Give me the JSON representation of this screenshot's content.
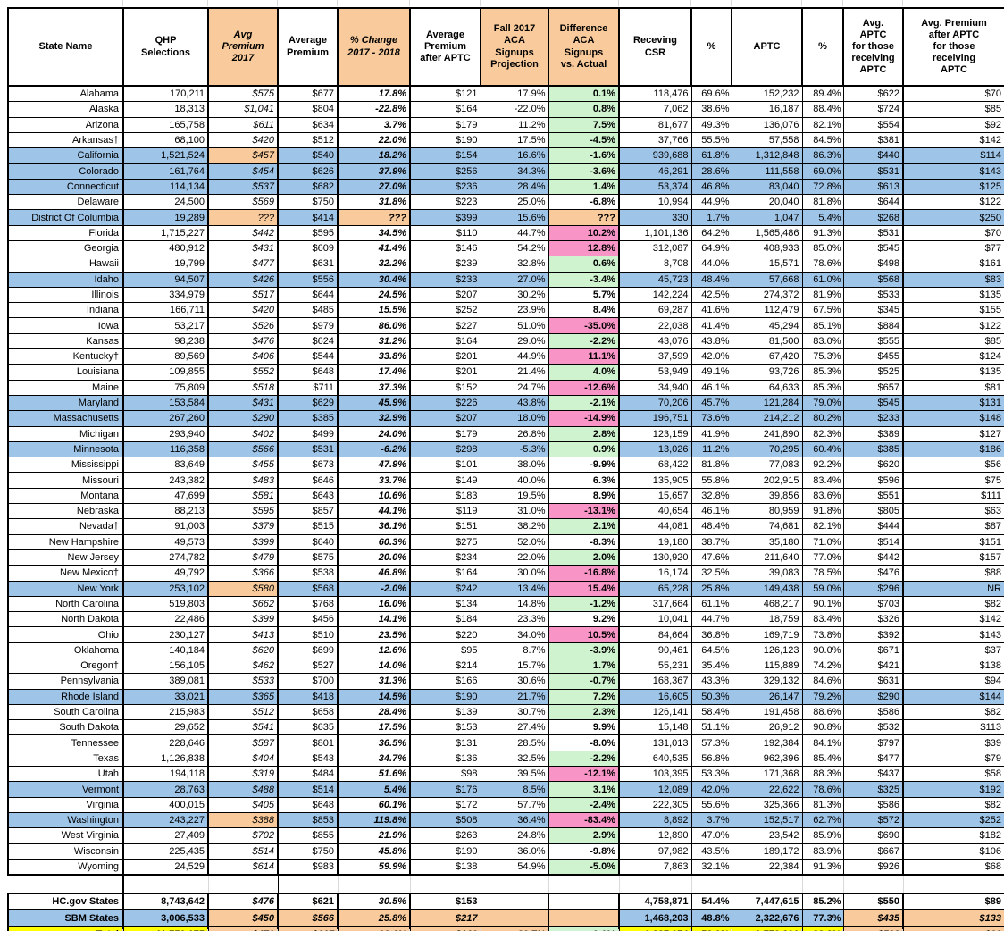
{
  "colors": {
    "blue": "#9EC4E8",
    "orange": "#F9CB9C",
    "green": "#CFF3CF",
    "pink": "#F895C6",
    "yellow": "#FFFF00"
  },
  "header": {
    "labels": [
      "State Name",
      "QHP\nSelections",
      "Avg\nPremium\n2017",
      "Average\nPremium",
      "% Change\n2017 - 2018",
      "Average\nPremium\nafter APTC",
      "Fall 2017\nACA\nSignups\nProjection",
      "Difference\nACA\nSignups\nvs. Actual",
      "Receving\nCSR",
      "%",
      "APTC",
      "%",
      "Avg.\nAPTC\nfor those\nreceiving\nAPTC",
      "Avg. Premium\nafter APTC\nfor those\nreceiving\nAPTC"
    ]
  },
  "rows": [
    {
      "name": "Alabama",
      "blue": false,
      "o17": false,
      "diffc": "g",
      "v": [
        "170,211",
        "$575",
        "$677",
        "17.8%",
        "$121",
        "17.9%",
        "0.1%",
        "118,476",
        "69.6%",
        "152,232",
        "89.4%",
        "$622",
        "$70"
      ]
    },
    {
      "name": "Alaska",
      "blue": false,
      "o17": false,
      "diffc": "g",
      "v": [
        "18,313",
        "$1,041",
        "$804",
        "-22.8%",
        "$164",
        "-22.0%",
        "0.8%",
        "7,062",
        "38.6%",
        "16,187",
        "88.4%",
        "$724",
        "$85"
      ]
    },
    {
      "name": "Arizona",
      "blue": false,
      "o17": false,
      "diffc": "g",
      "v": [
        "165,758",
        "$611",
        "$634",
        "3.7%",
        "$179",
        "11.2%",
        "7.5%",
        "81,677",
        "49.3%",
        "136,076",
        "82.1%",
        "$554",
        "$92"
      ]
    },
    {
      "name": "Arkansas†",
      "blue": false,
      "o17": false,
      "diffc": "g",
      "v": [
        "68,100",
        "$420",
        "$512",
        "22.0%",
        "$190",
        "17.5%",
        "-4.5%",
        "37,766",
        "55.5%",
        "57,558",
        "84.5%",
        "$381",
        "$142"
      ]
    },
    {
      "name": "California",
      "blue": true,
      "o17": true,
      "diffc": "g",
      "v": [
        "1,521,524",
        "$457",
        "$540",
        "18.2%",
        "$154",
        "16.6%",
        "-1.6%",
        "939,688",
        "61.8%",
        "1,312,848",
        "86.3%",
        "$440",
        "$114"
      ]
    },
    {
      "name": "Colorado",
      "blue": true,
      "o17": false,
      "diffc": "g",
      "v": [
        "161,764",
        "$454",
        "$626",
        "37.9%",
        "$256",
        "34.3%",
        "-3.6%",
        "46,291",
        "28.6%",
        "111,558",
        "69.0%",
        "$531",
        "$143"
      ]
    },
    {
      "name": "Connecticut",
      "blue": true,
      "o17": false,
      "diffc": "g",
      "v": [
        "114,134",
        "$537",
        "$682",
        "27.0%",
        "$236",
        "28.4%",
        "1.4%",
        "53,374",
        "46.8%",
        "83,040",
        "72.8%",
        "$613",
        "$125"
      ]
    },
    {
      "name": "Delaware",
      "blue": false,
      "o17": false,
      "diffc": "w",
      "v": [
        "24,500",
        "$569",
        "$750",
        "31.8%",
        "$223",
        "25.0%",
        "-6.8%",
        "10,994",
        "44.9%",
        "20,040",
        "81.8%",
        "$644",
        "$122"
      ]
    },
    {
      "name": "District Of Columbia",
      "blue": true,
      "o17": true,
      "oc": true,
      "diffc": "o",
      "v": [
        "19,289",
        "???",
        "$414",
        "???",
        "$399",
        "15.6%",
        "???",
        "330",
        "1.7%",
        "1,047",
        "5.4%",
        "$268",
        "$250"
      ]
    },
    {
      "name": "Florida",
      "blue": false,
      "o17": false,
      "diffc": "p",
      "v": [
        "1,715,227",
        "$442",
        "$595",
        "34.5%",
        "$110",
        "44.7%",
        "10.2%",
        "1,101,136",
        "64.2%",
        "1,565,486",
        "91.3%",
        "$531",
        "$70"
      ]
    },
    {
      "name": "Georgia",
      "blue": false,
      "o17": false,
      "diffc": "p",
      "v": [
        "480,912",
        "$431",
        "$609",
        "41.4%",
        "$146",
        "54.2%",
        "12.8%",
        "312,087",
        "64.9%",
        "408,933",
        "85.0%",
        "$545",
        "$77"
      ]
    },
    {
      "name": "Hawaii",
      "blue": false,
      "o17": false,
      "diffc": "g",
      "v": [
        "19,799",
        "$477",
        "$631",
        "32.2%",
        "$239",
        "32.8%",
        "0.6%",
        "8,708",
        "44.0%",
        "15,571",
        "78.6%",
        "$498",
        "$161"
      ]
    },
    {
      "name": "Idaho",
      "blue": true,
      "o17": false,
      "diffc": "g",
      "v": [
        "94,507",
        "$426",
        "$556",
        "30.4%",
        "$233",
        "27.0%",
        "-3.4%",
        "45,723",
        "48.4%",
        "57,668",
        "61.0%",
        "$568",
        "$83"
      ]
    },
    {
      "name": "Illinois",
      "blue": false,
      "o17": false,
      "diffc": "w",
      "v": [
        "334,979",
        "$517",
        "$644",
        "24.5%",
        "$207",
        "30.2%",
        "5.7%",
        "142,224",
        "42.5%",
        "274,372",
        "81.9%",
        "$533",
        "$135"
      ]
    },
    {
      "name": "Indiana",
      "blue": false,
      "o17": false,
      "diffc": "w",
      "v": [
        "166,711",
        "$420",
        "$485",
        "15.5%",
        "$252",
        "23.9%",
        "8.4%",
        "69,287",
        "41.6%",
        "112,479",
        "67.5%",
        "$345",
        "$155"
      ]
    },
    {
      "name": "Iowa",
      "blue": false,
      "o17": false,
      "diffc": "p",
      "v": [
        "53,217",
        "$526",
        "$979",
        "86.0%",
        "$227",
        "51.0%",
        "-35.0%",
        "22,038",
        "41.4%",
        "45,294",
        "85.1%",
        "$884",
        "$122"
      ]
    },
    {
      "name": "Kansas",
      "blue": false,
      "o17": false,
      "diffc": "g",
      "v": [
        "98,238",
        "$476",
        "$624",
        "31.2%",
        "$164",
        "29.0%",
        "-2.2%",
        "43,076",
        "43.8%",
        "81,500",
        "83.0%",
        "$555",
        "$85"
      ]
    },
    {
      "name": "Kentucky†",
      "blue": false,
      "o17": false,
      "diffc": "p",
      "v": [
        "89,569",
        "$406",
        "$544",
        "33.8%",
        "$201",
        "44.9%",
        "11.1%",
        "37,599",
        "42.0%",
        "67,420",
        "75.3%",
        "$455",
        "$124"
      ]
    },
    {
      "name": "Louisiana",
      "blue": false,
      "o17": false,
      "diffc": "g",
      "v": [
        "109,855",
        "$552",
        "$648",
        "17.4%",
        "$201",
        "21.4%",
        "4.0%",
        "53,949",
        "49.1%",
        "93,726",
        "85.3%",
        "$525",
        "$135"
      ]
    },
    {
      "name": "Maine",
      "blue": false,
      "o17": false,
      "diffc": "p",
      "v": [
        "75,809",
        "$518",
        "$711",
        "37.3%",
        "$152",
        "24.7%",
        "-12.6%",
        "34,940",
        "46.1%",
        "64,633",
        "85.3%",
        "$657",
        "$81"
      ]
    },
    {
      "name": "Maryland",
      "blue": true,
      "o17": false,
      "diffc": "g",
      "v": [
        "153,584",
        "$431",
        "$629",
        "45.9%",
        "$226",
        "43.8%",
        "-2.1%",
        "70,206",
        "45.7%",
        "121,284",
        "79.0%",
        "$545",
        "$131"
      ]
    },
    {
      "name": "Massachusetts",
      "blue": true,
      "o17": false,
      "diffc": "p",
      "v": [
        "267,260",
        "$290",
        "$385",
        "32.9%",
        "$207",
        "18.0%",
        "-14.9%",
        "196,751",
        "73.6%",
        "214,212",
        "80.2%",
        "$233",
        "$148"
      ]
    },
    {
      "name": "Michigan",
      "blue": false,
      "o17": false,
      "diffc": "g",
      "v": [
        "293,940",
        "$402",
        "$499",
        "24.0%",
        "$179",
        "26.8%",
        "2.8%",
        "123,159",
        "41.9%",
        "241,890",
        "82.3%",
        "$389",
        "$127"
      ]
    },
    {
      "name": "Minnesota",
      "blue": true,
      "o17": false,
      "diffc": "g",
      "v": [
        "116,358",
        "$566",
        "$531",
        "-6.2%",
        "$298",
        "-5.3%",
        "0.9%",
        "13,026",
        "11.2%",
        "70,295",
        "60.4%",
        "$385",
        "$186"
      ]
    },
    {
      "name": "Mississippi",
      "blue": false,
      "o17": false,
      "diffc": "w",
      "v": [
        "83,649",
        "$455",
        "$673",
        "47.9%",
        "$101",
        "38.0%",
        "-9.9%",
        "68,422",
        "81.8%",
        "77,083",
        "92.2%",
        "$620",
        "$56"
      ]
    },
    {
      "name": "Missouri",
      "blue": false,
      "o17": false,
      "diffc": "w",
      "v": [
        "243,382",
        "$483",
        "$646",
        "33.7%",
        "$149",
        "40.0%",
        "6.3%",
        "135,905",
        "55.8%",
        "202,915",
        "83.4%",
        "$596",
        "$75"
      ]
    },
    {
      "name": "Montana",
      "blue": false,
      "o17": false,
      "diffc": "w",
      "v": [
        "47,699",
        "$581",
        "$643",
        "10.6%",
        "$183",
        "19.5%",
        "8.9%",
        "15,657",
        "32.8%",
        "39,856",
        "83.6%",
        "$551",
        "$111"
      ]
    },
    {
      "name": "Nebraska",
      "blue": false,
      "o17": false,
      "diffc": "p",
      "v": [
        "88,213",
        "$595",
        "$857",
        "44.1%",
        "$119",
        "31.0%",
        "-13.1%",
        "40,654",
        "46.1%",
        "80,959",
        "91.8%",
        "$805",
        "$63"
      ]
    },
    {
      "name": "Nevada†",
      "blue": false,
      "o17": false,
      "diffc": "g",
      "v": [
        "91,003",
        "$379",
        "$515",
        "36.1%",
        "$151",
        "38.2%",
        "2.1%",
        "44,081",
        "48.4%",
        "74,681",
        "82.1%",
        "$444",
        "$87"
      ]
    },
    {
      "name": "New Hampshire",
      "blue": false,
      "o17": false,
      "diffc": "w",
      "v": [
        "49,573",
        "$399",
        "$640",
        "60.3%",
        "$275",
        "52.0%",
        "-8.3%",
        "19,180",
        "38.7%",
        "35,180",
        "71.0%",
        "$514",
        "$151"
      ]
    },
    {
      "name": "New Jersey",
      "blue": false,
      "o17": false,
      "diffc": "g",
      "v": [
        "274,782",
        "$479",
        "$575",
        "20.0%",
        "$234",
        "22.0%",
        "2.0%",
        "130,920",
        "47.6%",
        "211,640",
        "77.0%",
        "$442",
        "$157"
      ]
    },
    {
      "name": "New Mexico†",
      "blue": false,
      "o17": false,
      "diffc": "p",
      "v": [
        "49,792",
        "$366",
        "$538",
        "46.8%",
        "$164",
        "30.0%",
        "-16.8%",
        "16,174",
        "32.5%",
        "39,083",
        "78.5%",
        "$476",
        "$88"
      ]
    },
    {
      "name": "New York",
      "blue": true,
      "o17": true,
      "diffc": "p",
      "v": [
        "253,102",
        "$580",
        "$568",
        "-2.0%",
        "$242",
        "13.4%",
        "15.4%",
        "65,228",
        "25.8%",
        "149,438",
        "59.0%",
        "$296",
        "NR"
      ]
    },
    {
      "name": "North Carolina",
      "blue": false,
      "o17": false,
      "diffc": "g",
      "v": [
        "519,803",
        "$662",
        "$768",
        "16.0%",
        "$134",
        "14.8%",
        "-1.2%",
        "317,664",
        "61.1%",
        "468,217",
        "90.1%",
        "$703",
        "$82"
      ]
    },
    {
      "name": "North Dakota",
      "blue": false,
      "o17": false,
      "diffc": "w",
      "v": [
        "22,486",
        "$399",
        "$456",
        "14.1%",
        "$184",
        "23.3%",
        "9.2%",
        "10,041",
        "44.7%",
        "18,759",
        "83.4%",
        "$326",
        "$142"
      ]
    },
    {
      "name": "Ohio",
      "blue": false,
      "o17": false,
      "diffc": "p",
      "v": [
        "230,127",
        "$413",
        "$510",
        "23.5%",
        "$220",
        "34.0%",
        "10.5%",
        "84,664",
        "36.8%",
        "169,719",
        "73.8%",
        "$392",
        "$143"
      ]
    },
    {
      "name": "Oklahoma",
      "blue": false,
      "o17": false,
      "diffc": "g",
      "v": [
        "140,184",
        "$620",
        "$699",
        "12.6%",
        "$95",
        "8.7%",
        "-3.9%",
        "90,461",
        "64.5%",
        "126,123",
        "90.0%",
        "$671",
        "$37"
      ]
    },
    {
      "name": "Oregon†",
      "blue": false,
      "o17": false,
      "diffc": "g",
      "v": [
        "156,105",
        "$462",
        "$527",
        "14.0%",
        "$214",
        "15.7%",
        "1.7%",
        "55,231",
        "35.4%",
        "115,889",
        "74.2%",
        "$421",
        "$138"
      ]
    },
    {
      "name": "Pennsylvania",
      "blue": false,
      "o17": false,
      "diffc": "g",
      "v": [
        "389,081",
        "$533",
        "$700",
        "31.3%",
        "$166",
        "30.6%",
        "-0.7%",
        "168,367",
        "43.3%",
        "329,132",
        "84.6%",
        "$631",
        "$94"
      ]
    },
    {
      "name": "Rhode Island",
      "blue": true,
      "o17": false,
      "diffc": "g",
      "v": [
        "33,021",
        "$365",
        "$418",
        "14.5%",
        "$190",
        "21.7%",
        "7.2%",
        "16,605",
        "50.3%",
        "26,147",
        "79.2%",
        "$290",
        "$144"
      ]
    },
    {
      "name": "South Carolina",
      "blue": false,
      "o17": false,
      "diffc": "g",
      "v": [
        "215,983",
        "$512",
        "$658",
        "28.4%",
        "$139",
        "30.7%",
        "2.3%",
        "126,141",
        "58.4%",
        "191,458",
        "88.6%",
        "$586",
        "$82"
      ]
    },
    {
      "name": "South Dakota",
      "blue": false,
      "o17": false,
      "diffc": "w",
      "v": [
        "29,652",
        "$541",
        "$635",
        "17.5%",
        "$153",
        "27.4%",
        "9.9%",
        "15,148",
        "51.1%",
        "26,912",
        "90.8%",
        "$532",
        "$113"
      ]
    },
    {
      "name": "Tennessee",
      "blue": false,
      "o17": false,
      "diffc": "w",
      "v": [
        "228,646",
        "$587",
        "$801",
        "36.5%",
        "$131",
        "28.5%",
        "-8.0%",
        "131,013",
        "57.3%",
        "192,384",
        "84.1%",
        "$797",
        "$39"
      ]
    },
    {
      "name": "Texas",
      "blue": false,
      "o17": false,
      "diffc": "g",
      "v": [
        "1,126,838",
        "$404",
        "$543",
        "34.7%",
        "$136",
        "32.5%",
        "-2.2%",
        "640,535",
        "56.8%",
        "962,396",
        "85.4%",
        "$477",
        "$79"
      ]
    },
    {
      "name": "Utah",
      "blue": false,
      "o17": false,
      "diffc": "p",
      "v": [
        "194,118",
        "$319",
        "$484",
        "51.6%",
        "$98",
        "39.5%",
        "-12.1%",
        "103,395",
        "53.3%",
        "171,368",
        "88.3%",
        "$437",
        "$58"
      ]
    },
    {
      "name": "Vermont",
      "blue": true,
      "o17": false,
      "diffc": "g",
      "v": [
        "28,763",
        "$488",
        "$514",
        "5.4%",
        "$176",
        "8.5%",
        "3.1%",
        "12,089",
        "42.0%",
        "22,622",
        "78.6%",
        "$325",
        "$192"
      ]
    },
    {
      "name": "Virginia",
      "blue": false,
      "o17": false,
      "diffc": "g",
      "v": [
        "400,015",
        "$405",
        "$648",
        "60.1%",
        "$172",
        "57.7%",
        "-2.4%",
        "222,305",
        "55.6%",
        "325,366",
        "81.3%",
        "$586",
        "$82"
      ]
    },
    {
      "name": "Washington",
      "blue": true,
      "o17": true,
      "diffc": "p",
      "v": [
        "243,227",
        "$388",
        "$853",
        "119.8%",
        "$508",
        "36.4%",
        "-83.4%",
        "8,892",
        "3.7%",
        "152,517",
        "62.7%",
        "$572",
        "$252"
      ]
    },
    {
      "name": "West Virginia",
      "blue": false,
      "o17": false,
      "diffc": "g",
      "v": [
        "27,409",
        "$702",
        "$855",
        "21.9%",
        "$263",
        "24.8%",
        "2.9%",
        "12,890",
        "47.0%",
        "23,542",
        "85.9%",
        "$690",
        "$182"
      ]
    },
    {
      "name": "Wisconsin",
      "blue": false,
      "o17": false,
      "diffc": "w",
      "v": [
        "225,435",
        "$514",
        "$750",
        "45.8%",
        "$190",
        "36.0%",
        "-9.8%",
        "97,982",
        "43.5%",
        "189,172",
        "83.9%",
        "$667",
        "$106"
      ]
    },
    {
      "name": "Wyoming",
      "blue": false,
      "o17": false,
      "diffc": "g",
      "v": [
        "24,529",
        "$614",
        "$983",
        "59.9%",
        "$138",
        "54.9%",
        "-5.0%",
        "7,863",
        "32.1%",
        "22,384",
        "91.3%",
        "$926",
        "$68"
      ]
    }
  ],
  "summary": [
    {
      "name": "HC.gov States",
      "v": [
        "8,743,642",
        "$476",
        "$621",
        "30.5%",
        "$153",
        "",
        "",
        "4,758,871",
        "54.4%",
        "7,447,615",
        "85.2%",
        "$550",
        "$89"
      ],
      "bgs": [
        "w",
        "w",
        "w",
        "w",
        "w",
        "w",
        "w",
        "w",
        "w",
        "w",
        "w",
        "w",
        "w",
        "w"
      ]
    },
    {
      "name": "SBM States",
      "v": [
        "3,006,533",
        "$450",
        "$566",
        "25.8%",
        "$217",
        "",
        "",
        "1,468,203",
        "48.8%",
        "2,322,676",
        "77.3%",
        "$435",
        "$133"
      ],
      "bgs": [
        "b",
        "b",
        "o",
        "o",
        "o",
        "o",
        "o",
        "o",
        "b",
        "b",
        "b",
        "b",
        "o",
        "o"
      ]
    },
    {
      "name": "Total",
      "v": [
        "11,750,175",
        "$470",
        "$607",
        "29.1%",
        "$169",
        "29.7%",
        "0.6%",
        "6,227,074",
        "53.0%",
        "9,770,291",
        "83.2%",
        "$523",
        "$99"
      ],
      "bgs": [
        "y",
        "y",
        "o",
        "o",
        "o",
        "o",
        "o",
        "g",
        "y",
        "y",
        "y",
        "y",
        "o",
        "o"
      ]
    }
  ]
}
